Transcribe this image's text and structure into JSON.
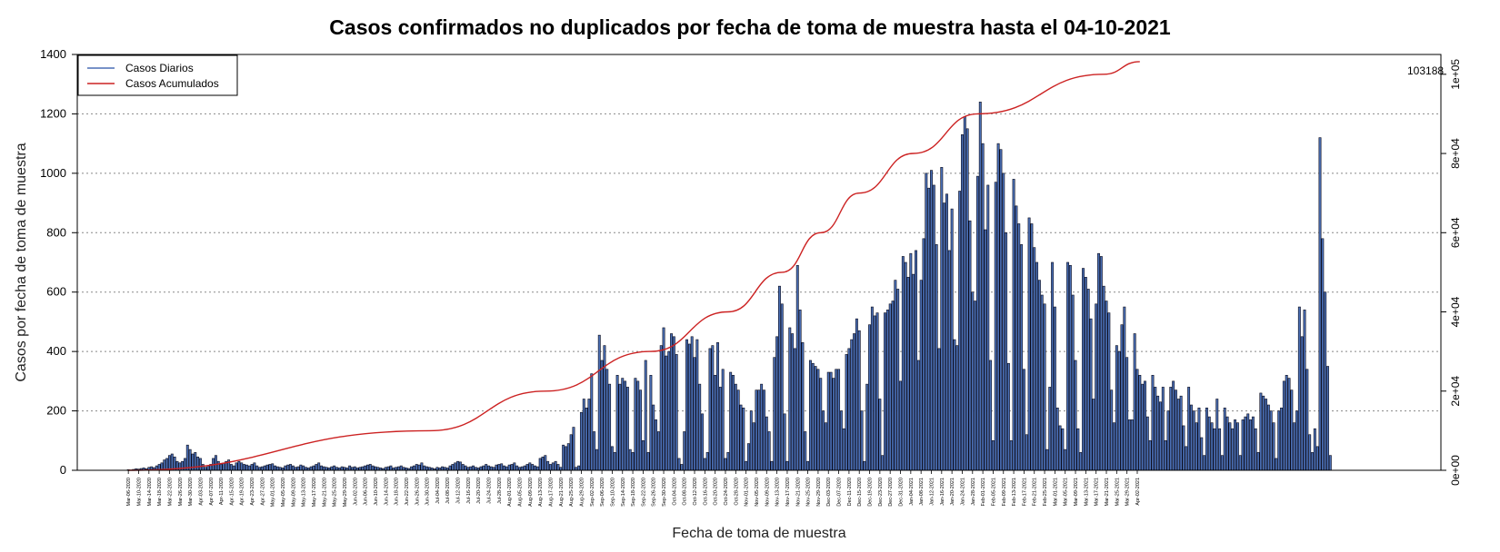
{
  "chart_data": {
    "type": "bar",
    "title": "Casos confirmados no duplicados por fecha de toma de muestra hasta el 04-10-2021",
    "xlabel": "Fecha de toma de muestra",
    "ylabel": "Casos por fecha de toma de muestra",
    "ylim": [
      0,
      1400
    ],
    "y_ticks": [
      0,
      200,
      400,
      600,
      800,
      1000,
      1200,
      1400
    ],
    "y2lim": [
      0,
      105000
    ],
    "y2_ticks": [
      "0e+00",
      "2e+04",
      "4e+04",
      "6e+04",
      "8e+04",
      "1e+05"
    ],
    "y2_tick_values": [
      0,
      20000,
      40000,
      60000,
      80000,
      100000
    ],
    "grid": "horizontal-dotted",
    "legend_position": "top-left",
    "series": [
      {
        "name": "Casos Diarios",
        "color": "#4a6fb5",
        "kind": "bar"
      },
      {
        "name": "Casos Acumulados",
        "color": "#cc2222",
        "kind": "line",
        "axis": "right"
      }
    ],
    "final_cumulative_label": "103188",
    "daily_start": "2020-03-06",
    "x_tick_labels": [
      "Mar-06-2020",
      "Mar-10-2020",
      "Mar-14-2020",
      "Mar-18-2020",
      "Mar-22-2020",
      "Mar-26-2020",
      "Mar-30-2020",
      "Apr-03-2020",
      "Apr-07-2020",
      "Apr-11-2020",
      "Apr-15-2020",
      "Apr-19-2020",
      "Apr-23-2020",
      "Apr-27-2020",
      "May-01-2020",
      "May-05-2020",
      "May-09-2020",
      "May-13-2020",
      "May-17-2020",
      "May-21-2020",
      "May-25-2020",
      "May-29-2020",
      "Jun-02-2020",
      "Jun-06-2020",
      "Jun-10-2020",
      "Jun-14-2020",
      "Jun-18-2020",
      "Jun-22-2020",
      "Jun-26-2020",
      "Jun-30-2020",
      "Jul-04-2020",
      "Jul-08-2020",
      "Jul-12-2020",
      "Jul-16-2020",
      "Jul-20-2020",
      "Jul-24-2020",
      "Jul-28-2020",
      "Aug-01-2020",
      "Aug-05-2020",
      "Aug-09-2020",
      "Aug-13-2020",
      "Aug-17-2020",
      "Aug-21-2020",
      "Aug-25-2020",
      "Aug-29-2020",
      "Sep-02-2020",
      "Sep-06-2020",
      "Sep-10-2020",
      "Sep-14-2020",
      "Sep-18-2020",
      "Sep-22-2020",
      "Sep-26-2020",
      "Sep-30-2020",
      "Oct-04-2020",
      "Oct-08-2020",
      "Oct-12-2020",
      "Oct-16-2020",
      "Oct-20-2020",
      "Oct-24-2020",
      "Oct-28-2020",
      "Nov-01-2020",
      "Nov-05-2020",
      "Nov-09-2020",
      "Nov-13-2020",
      "Nov-17-2020",
      "Nov-21-2020",
      "Nov-25-2020",
      "Nov-29-2020",
      "Dec-03-2020",
      "Dec-07-2020",
      "Dec-11-2020",
      "Dec-15-2020",
      "Dec-19-2020",
      "Dec-23-2020",
      "Dec-27-2020",
      "Dec-31-2020",
      "Jan-04-2021",
      "Jan-08-2021",
      "Jan-12-2021",
      "Jan-16-2021",
      "Jan-20-2021",
      "Jan-24-2021",
      "Jan-28-2021",
      "Feb-01-2021",
      "Feb-05-2021",
      "Feb-09-2021",
      "Feb-13-2021",
      "Feb-17-2021",
      "Feb-21-2021",
      "Feb-25-2021",
      "Mar-01-2021",
      "Mar-05-2021",
      "Mar-09-2021",
      "Mar-13-2021",
      "Mar-17-2021",
      "Mar-21-2021",
      "Mar-25-2021",
      "Mar-29-2021",
      "Apr-02-2021"
    ],
    "daily_values": [
      2,
      1,
      3,
      5,
      4,
      6,
      8,
      5,
      10,
      12,
      9,
      15,
      20,
      25,
      35,
      40,
      50,
      55,
      45,
      30,
      25,
      30,
      40,
      85,
      70,
      55,
      60,
      45,
      40,
      20,
      10,
      15,
      20,
      40,
      50,
      30,
      20,
      25,
      30,
      35,
      20,
      15,
      25,
      30,
      25,
      20,
      18,
      15,
      20,
      25,
      15,
      10,
      12,
      15,
      18,
      20,
      22,
      15,
      12,
      10,
      8,
      15,
      18,
      20,
      15,
      10,
      12,
      18,
      15,
      10,
      8,
      12,
      15,
      20,
      25,
      15,
      12,
      10,
      8,
      12,
      15,
      10,
      8,
      12,
      10,
      8,
      15,
      10,
      12,
      8,
      10,
      12,
      15,
      18,
      20,
      15,
      12,
      10,
      8,
      6,
      10,
      12,
      15,
      8,
      10,
      12,
      15,
      10,
      8,
      6,
      12,
      15,
      20,
      18,
      25,
      15,
      12,
      10,
      8,
      5,
      10,
      8,
      12,
      10,
      8,
      15,
      20,
      25,
      30,
      28,
      20,
      15,
      10,
      12,
      15,
      10,
      8,
      12,
      15,
      20,
      15,
      12,
      10,
      18,
      20,
      22,
      15,
      12,
      18,
      20,
      25,
      15,
      10,
      12,
      15,
      20,
      25,
      20,
      15,
      12,
      40,
      45,
      50,
      30,
      20,
      25,
      30,
      20,
      10,
      85,
      80,
      90,
      120,
      145,
      10,
      15,
      195,
      240,
      210,
      240,
      325,
      130,
      70,
      455,
      370,
      420,
      340,
      290,
      80,
      60,
      320,
      290,
      310,
      300,
      280,
      70,
      60,
      310,
      300,
      270,
      100,
      370,
      60,
      320,
      220,
      170,
      130,
      420,
      480,
      385,
      400,
      460,
      450,
      390,
      40,
      20,
      130,
      440,
      425,
      450,
      380,
      440,
      290,
      190,
      40,
      60,
      410,
      420,
      320,
      430,
      280,
      340,
      40,
      60,
      330,
      320,
      290,
      270,
      220,
      210,
      30,
      90,
      200,
      160,
      270,
      270,
      290,
      270,
      180,
      130,
      30,
      380,
      450,
      620,
      560,
      190,
      30,
      480,
      460,
      410,
      690,
      540,
      430,
      130,
      30,
      370,
      360,
      350,
      340,
      310,
      200,
      160,
      330,
      330,
      310,
      340,
      340,
      200,
      140,
      390,
      410,
      440,
      460,
      510,
      470,
      200,
      30,
      290,
      490,
      550,
      520,
      530,
      240,
      50,
      530,
      540,
      560,
      570,
      640,
      610,
      300,
      720,
      700,
      650,
      730,
      660,
      740,
      370,
      640,
      780,
      1000,
      950,
      1010,
      960,
      760,
      410,
      1020,
      900,
      930,
      740,
      880,
      440,
      420,
      940,
      1130,
      1190,
      1150,
      840,
      600,
      570,
      990,
      1240,
      1100,
      810,
      960,
      370,
      100,
      970,
      1100,
      1080,
      1000,
      800,
      360,
      100,
      980,
      890,
      830,
      760,
      340,
      120,
      850,
      830,
      750,
      700,
      640,
      590,
      560,
      70,
      280,
      700,
      550,
      210,
      150,
      140,
      70,
      700,
      690,
      590,
      370,
      140,
      60,
      680,
      650,
      610,
      510,
      240,
      560,
      730,
      720,
      620,
      570,
      530,
      270,
      160,
      420,
      400,
      490,
      550,
      380,
      170,
      170,
      460,
      340,
      320,
      290,
      300,
      180,
      100,
      320,
      280,
      250,
      230,
      280,
      100,
      200,
      280,
      300,
      270,
      240,
      250,
      150,
      80,
      280,
      220,
      200,
      160,
      210,
      110,
      50,
      210,
      180,
      160,
      140,
      240,
      140,
      50,
      210,
      180,
      160,
      140,
      170,
      160,
      50,
      170,
      180,
      190,
      170,
      180,
      140,
      60,
      260,
      250,
      240,
      220,
      200,
      160,
      40,
      200,
      210,
      300,
      320,
      310,
      270,
      160,
      200,
      550,
      450,
      540,
      340,
      120,
      60,
      140,
      80,
      1120,
      780,
      600,
      350,
      50
    ],
    "cumulative_values": [
      0,
      10000,
      20000,
      30000,
      40000,
      50000,
      60000,
      70000,
      80000,
      90000,
      100000,
      103188
    ],
    "cumulative_sample_dates": [
      "Mar-06-2020",
      "Jul-01-2020",
      "Aug-15-2020",
      "Sep-25-2020",
      "Oct-25-2020",
      "Nov-15-2020",
      "Nov-30-2020",
      "Dec-15-2020",
      "Jan-05-2021",
      "Jan-30-2021",
      "Mar-20-2021",
      "Apr-03-2021"
    ]
  },
  "legend": {
    "items": [
      {
        "label": "Casos Diarios",
        "color": "#4a6fb5"
      },
      {
        "label": "Casos Acumulados",
        "color": "#cc2222"
      }
    ]
  }
}
